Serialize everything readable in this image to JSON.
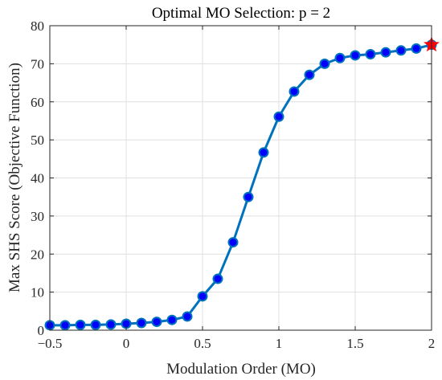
{
  "chart_data": {
    "type": "line",
    "title": "Optimal MO Selection: p = 2",
    "xlabel": "Modulation Order (MO)",
    "ylabel": "Max SHS Score (Objective Function)",
    "xlim": [
      -0.5,
      2
    ],
    "ylim": [
      0,
      80
    ],
    "xticks": [
      -0.5,
      0,
      0.5,
      1,
      1.5,
      2
    ],
    "xtick_labels": [
      "−0.5",
      "0",
      "0.5",
      "1",
      "1.5",
      "2"
    ],
    "yticks": [
      0,
      10,
      20,
      30,
      40,
      50,
      60,
      70,
      80
    ],
    "ytick_labels": [
      "0",
      "10",
      "20",
      "30",
      "40",
      "50",
      "60",
      "70",
      "80"
    ],
    "grid": true,
    "series": [
      {
        "x": [
          -0.5,
          -0.4,
          -0.3,
          -0.2,
          -0.1,
          0,
          0.1,
          0.2,
          0.3,
          0.4,
          0.5,
          0.6,
          0.7,
          0.8,
          0.9,
          1.0,
          1.1,
          1.2,
          1.3,
          1.4,
          1.5,
          1.6,
          1.7,
          1.8,
          1.9,
          2.0
        ],
        "y": [
          1.3,
          1.3,
          1.4,
          1.4,
          1.5,
          1.7,
          1.9,
          2.2,
          2.7,
          3.6,
          8.9,
          13.5,
          23.1,
          35.0,
          46.7,
          56.1,
          62.7,
          67.1,
          70.0,
          71.5,
          72.2,
          72.5,
          73.0,
          73.5,
          74.0,
          75.0
        ],
        "line_color": "#0072BD",
        "marker_color": "#0000FF"
      }
    ],
    "optimum": {
      "x": 2.0,
      "y": 75.0,
      "marker": "star",
      "color": "#FF0000"
    }
  }
}
